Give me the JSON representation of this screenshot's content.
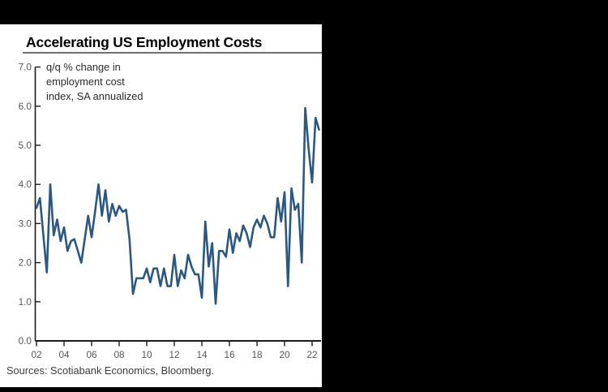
{
  "frame": {
    "background_color": "#000000",
    "panel_color": "#ffffff"
  },
  "chart_data": {
    "type": "line",
    "title": "Accelerating US Employment Costs",
    "annotation_lines": [
      "q/q % change in",
      "employment cost",
      "index, SA annualized"
    ],
    "source_note": "Sources: Scotiabank Economics, Bloomberg.",
    "xlabel": "",
    "ylabel": "",
    "legend": "none",
    "grid": false,
    "line_color": "#2a5784",
    "axis_color": "#1a1a1a",
    "ylim": [
      0,
      7
    ],
    "y_ticks": [
      0,
      1,
      2,
      3,
      4,
      5,
      6,
      7
    ],
    "y_tick_labels": [
      "0.0",
      "1.0",
      "2.0",
      "3.0",
      "4.0",
      "5.0",
      "6.0",
      "7.0"
    ],
    "x_tick_labels": [
      "02",
      "04",
      "06",
      "08",
      "10",
      "12",
      "14",
      "16",
      "18",
      "20",
      "22"
    ],
    "x_tick_every_n_points": 8,
    "x_start": "2002Q1",
    "x_end": "2022Q3",
    "frequency": "quarterly",
    "values": [
      3.4,
      3.65,
      2.7,
      1.75,
      4.0,
      2.7,
      3.1,
      2.55,
      2.9,
      2.3,
      2.55,
      2.6,
      2.3,
      2.0,
      2.6,
      3.2,
      2.65,
      3.3,
      4.0,
      3.2,
      3.85,
      3.05,
      3.5,
      3.2,
      3.45,
      3.3,
      3.35,
      2.6,
      1.2,
      1.6,
      1.6,
      1.6,
      1.85,
      1.5,
      1.85,
      1.85,
      1.4,
      1.85,
      1.4,
      1.4,
      2.2,
      1.4,
      1.8,
      1.6,
      2.2,
      1.9,
      1.7,
      1.7,
      1.1,
      3.05,
      1.9,
      2.5,
      0.95,
      2.3,
      2.3,
      2.15,
      2.85,
      2.25,
      2.75,
      2.55,
      2.95,
      2.75,
      2.4,
      2.9,
      3.1,
      2.9,
      3.2,
      3.0,
      2.65,
      2.65,
      3.65,
      3.05,
      3.8,
      1.4,
      3.9,
      3.35,
      3.5,
      2.0,
      5.95,
      4.9,
      4.05,
      5.7,
      5.4
    ]
  }
}
